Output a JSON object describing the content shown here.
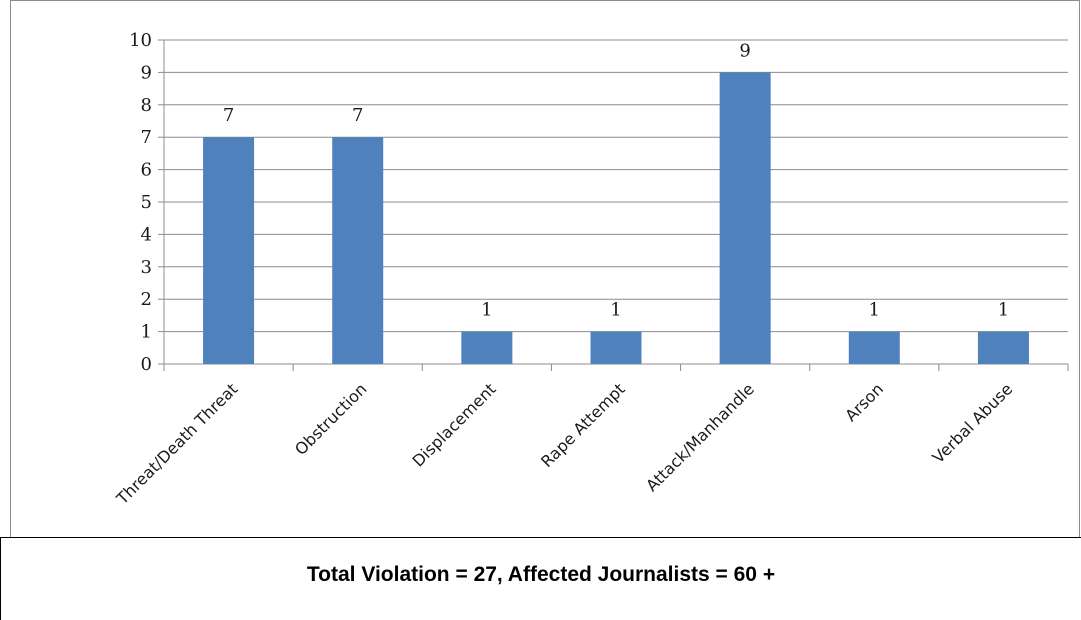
{
  "chart_data": {
    "type": "bar",
    "categories": [
      "Threat/Death Threat",
      "Obstruction",
      "Displacement",
      "Rape Attempt",
      "Attack/Manhandle",
      "Arson",
      "Verbal Abuse"
    ],
    "values": [
      7,
      7,
      1,
      1,
      9,
      1,
      1
    ],
    "data_labels": [
      "7",
      "7",
      "1",
      "1",
      "9",
      "1",
      "1"
    ],
    "ylim": [
      0,
      10
    ],
    "yticks": [
      "0",
      "1",
      "2",
      "3",
      "4",
      "5",
      "6",
      "7",
      "8",
      "9",
      "10"
    ],
    "grid": true,
    "legend": "none",
    "bar_color": "#4f81bd",
    "grid_color": "#8c8c8c",
    "title": "",
    "xlabel": "",
    "ylabel": ""
  },
  "footer": {
    "text": "Total Violation = 27, Affected Journalists = 60 +"
  }
}
